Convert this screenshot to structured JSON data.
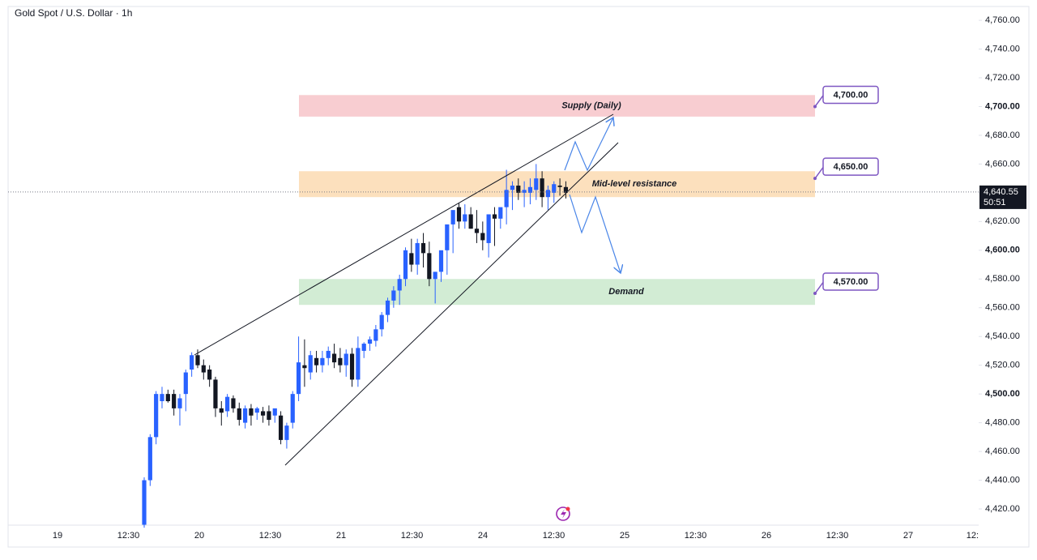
{
  "chart_data": {
    "type": "candlestick",
    "title": "Gold Spot / U.S. Dollar · 1h",
    "up_color": "#2962ff",
    "down_color": "#131722",
    "ylim": [
      4407.6,
      4768.5
    ],
    "yticks": [
      {
        "value": 4420,
        "label": "4,420.00"
      },
      {
        "value": 4440,
        "label": "4,440.00"
      },
      {
        "value": 4460,
        "label": "4,460.00"
      },
      {
        "value": 4480,
        "label": "4,480.00"
      },
      {
        "value": 4500,
        "label": "4,500.00"
      },
      {
        "value": 4520,
        "label": "4,520.00"
      },
      {
        "value": 4540,
        "label": "4,540.00"
      },
      {
        "value": 4560,
        "label": "4,560.00"
      },
      {
        "value": 4580,
        "label": "4,580.00"
      },
      {
        "value": 4600,
        "label": "4,600.00"
      },
      {
        "value": 4620,
        "label": "4,620.00"
      },
      {
        "value": 4640,
        "label": "4,640.00"
      },
      {
        "value": 4660,
        "label": "4,660.00"
      },
      {
        "value": 4680,
        "label": "4,680.00"
      },
      {
        "value": 4700,
        "label": "4,700.00"
      },
      {
        "value": 4720,
        "label": "4,720.00"
      },
      {
        "value": 4740,
        "label": "4,740.00"
      },
      {
        "value": 4760,
        "label": "4,760.00"
      }
    ],
    "x_labels": [
      "19",
      "12:30",
      "20",
      "12:30",
      "21",
      "12:30",
      "24",
      "12:30",
      "25",
      "12:30",
      "26",
      "12:30",
      "27",
      "12:"
    ],
    "candles": {
      "open": [
        4409,
        4440,
        4470,
        4495,
        4500,
        4500,
        4490,
        4500,
        4517,
        4527,
        4520,
        4517,
        4510,
        4490,
        4488,
        4497,
        4490,
        4480,
        4490,
        4487,
        4488,
        4488,
        4485,
        4485,
        4468,
        4480,
        4500,
        4520,
        4515,
        4525,
        4520,
        4525,
        4528,
        4525,
        4520,
        4528,
        4510,
        4530,
        4535,
        4537,
        4545,
        4555,
        4565,
        4572,
        4580,
        4598,
        4590,
        4605,
        4598,
        4580,
        4585,
        4600,
        4618,
        4630,
        4620,
        4625,
        4615,
        4612,
        4605,
        4625,
        4622,
        4630,
        4642,
        4645,
        4640,
        4640,
        4642,
        4650,
        4637,
        4640,
        4645,
        4644
      ],
      "high": [
        4442,
        4472,
        4502,
        4505,
        4503,
        4503,
        4500,
        4517,
        4529,
        4531,
        4524,
        4520,
        4512,
        4495,
        4500,
        4499,
        4494,
        4492,
        4493,
        4491,
        4491,
        4492,
        4489,
        4488,
        4480,
        4502,
        4540,
        4538,
        4530,
        4530,
        4530,
        4533,
        4535,
        4532,
        4531,
        4532,
        4540,
        4536,
        4540,
        4548,
        4557,
        4567,
        4575,
        4583,
        4602,
        4608,
        4608,
        4612,
        4606,
        4585,
        4590,
        4603,
        4625,
        4633,
        4632,
        4630,
        4628,
        4620,
        4625,
        4630,
        4628,
        4656,
        4648,
        4650,
        4648,
        4650,
        4660,
        4655,
        4645,
        4648,
        4650,
        4648
      ],
      "low": [
        4407,
        4436,
        4465,
        4490,
        4494,
        4485,
        4478,
        4488,
        4512,
        4518,
        4510,
        4505,
        4484,
        4478,
        4484,
        4487,
        4478,
        4476,
        4478,
        4482,
        4480,
        4478,
        4480,
        4465,
        4462,
        4476,
        4495,
        4505,
        4510,
        4515,
        4515,
        4520,
        4518,
        4515,
        4512,
        4505,
        4505,
        4525,
        4530,
        4533,
        4540,
        4550,
        4560,
        4562,
        4575,
        4585,
        4583,
        4588,
        4575,
        4563,
        4578,
        4583,
        4598,
        4615,
        4615,
        4615,
        4605,
        4600,
        4595,
        4603,
        4615,
        4618,
        4628,
        4635,
        4630,
        4632,
        4635,
        4630,
        4628,
        4633,
        4638,
        4636
      ],
      "close": [
        4440,
        4470,
        4500,
        4500,
        4495,
        4490,
        4497,
        4515,
        4527,
        4520,
        4515,
        4510,
        4490,
        4487,
        4498,
        4490,
        4482,
        4490,
        4485,
        4490,
        4485,
        4482,
        4490,
        4468,
        4478,
        4500,
        4522,
        4518,
        4527,
        4520,
        4525,
        4530,
        4522,
        4520,
        4528,
        4510,
        4532,
        4535,
        4538,
        4545,
        4555,
        4565,
        4572,
        4580,
        4600,
        4590,
        4605,
        4598,
        4580,
        4585,
        4600,
        4618,
        4628,
        4620,
        4625,
        4615,
        4612,
        4607,
        4625,
        4622,
        4630,
        4642,
        4645,
        4640,
        4642,
        4644,
        4650,
        4637,
        4642,
        4646,
        4644,
        4640
      ]
    },
    "zones": [
      {
        "label": "Supply   (Daily)",
        "low": 4693,
        "high": 4708,
        "color": "#f8cdd1"
      },
      {
        "label": "Mid-level resistance",
        "low": 4637,
        "high": 4655,
        "color": "#fce0bd"
      },
      {
        "label": "Demand",
        "low": 4562,
        "high": 4580,
        "color": "#d2ecd4"
      }
    ],
    "callouts": [
      {
        "value": 4700,
        "label": "4,700.00"
      },
      {
        "value": 4650,
        "label": "4,650.00"
      },
      {
        "value": 4570,
        "label": "4,570.00"
      }
    ],
    "last_price": {
      "value": 4640.55,
      "label": "4,640.55"
    },
    "countdown": "50:51"
  }
}
